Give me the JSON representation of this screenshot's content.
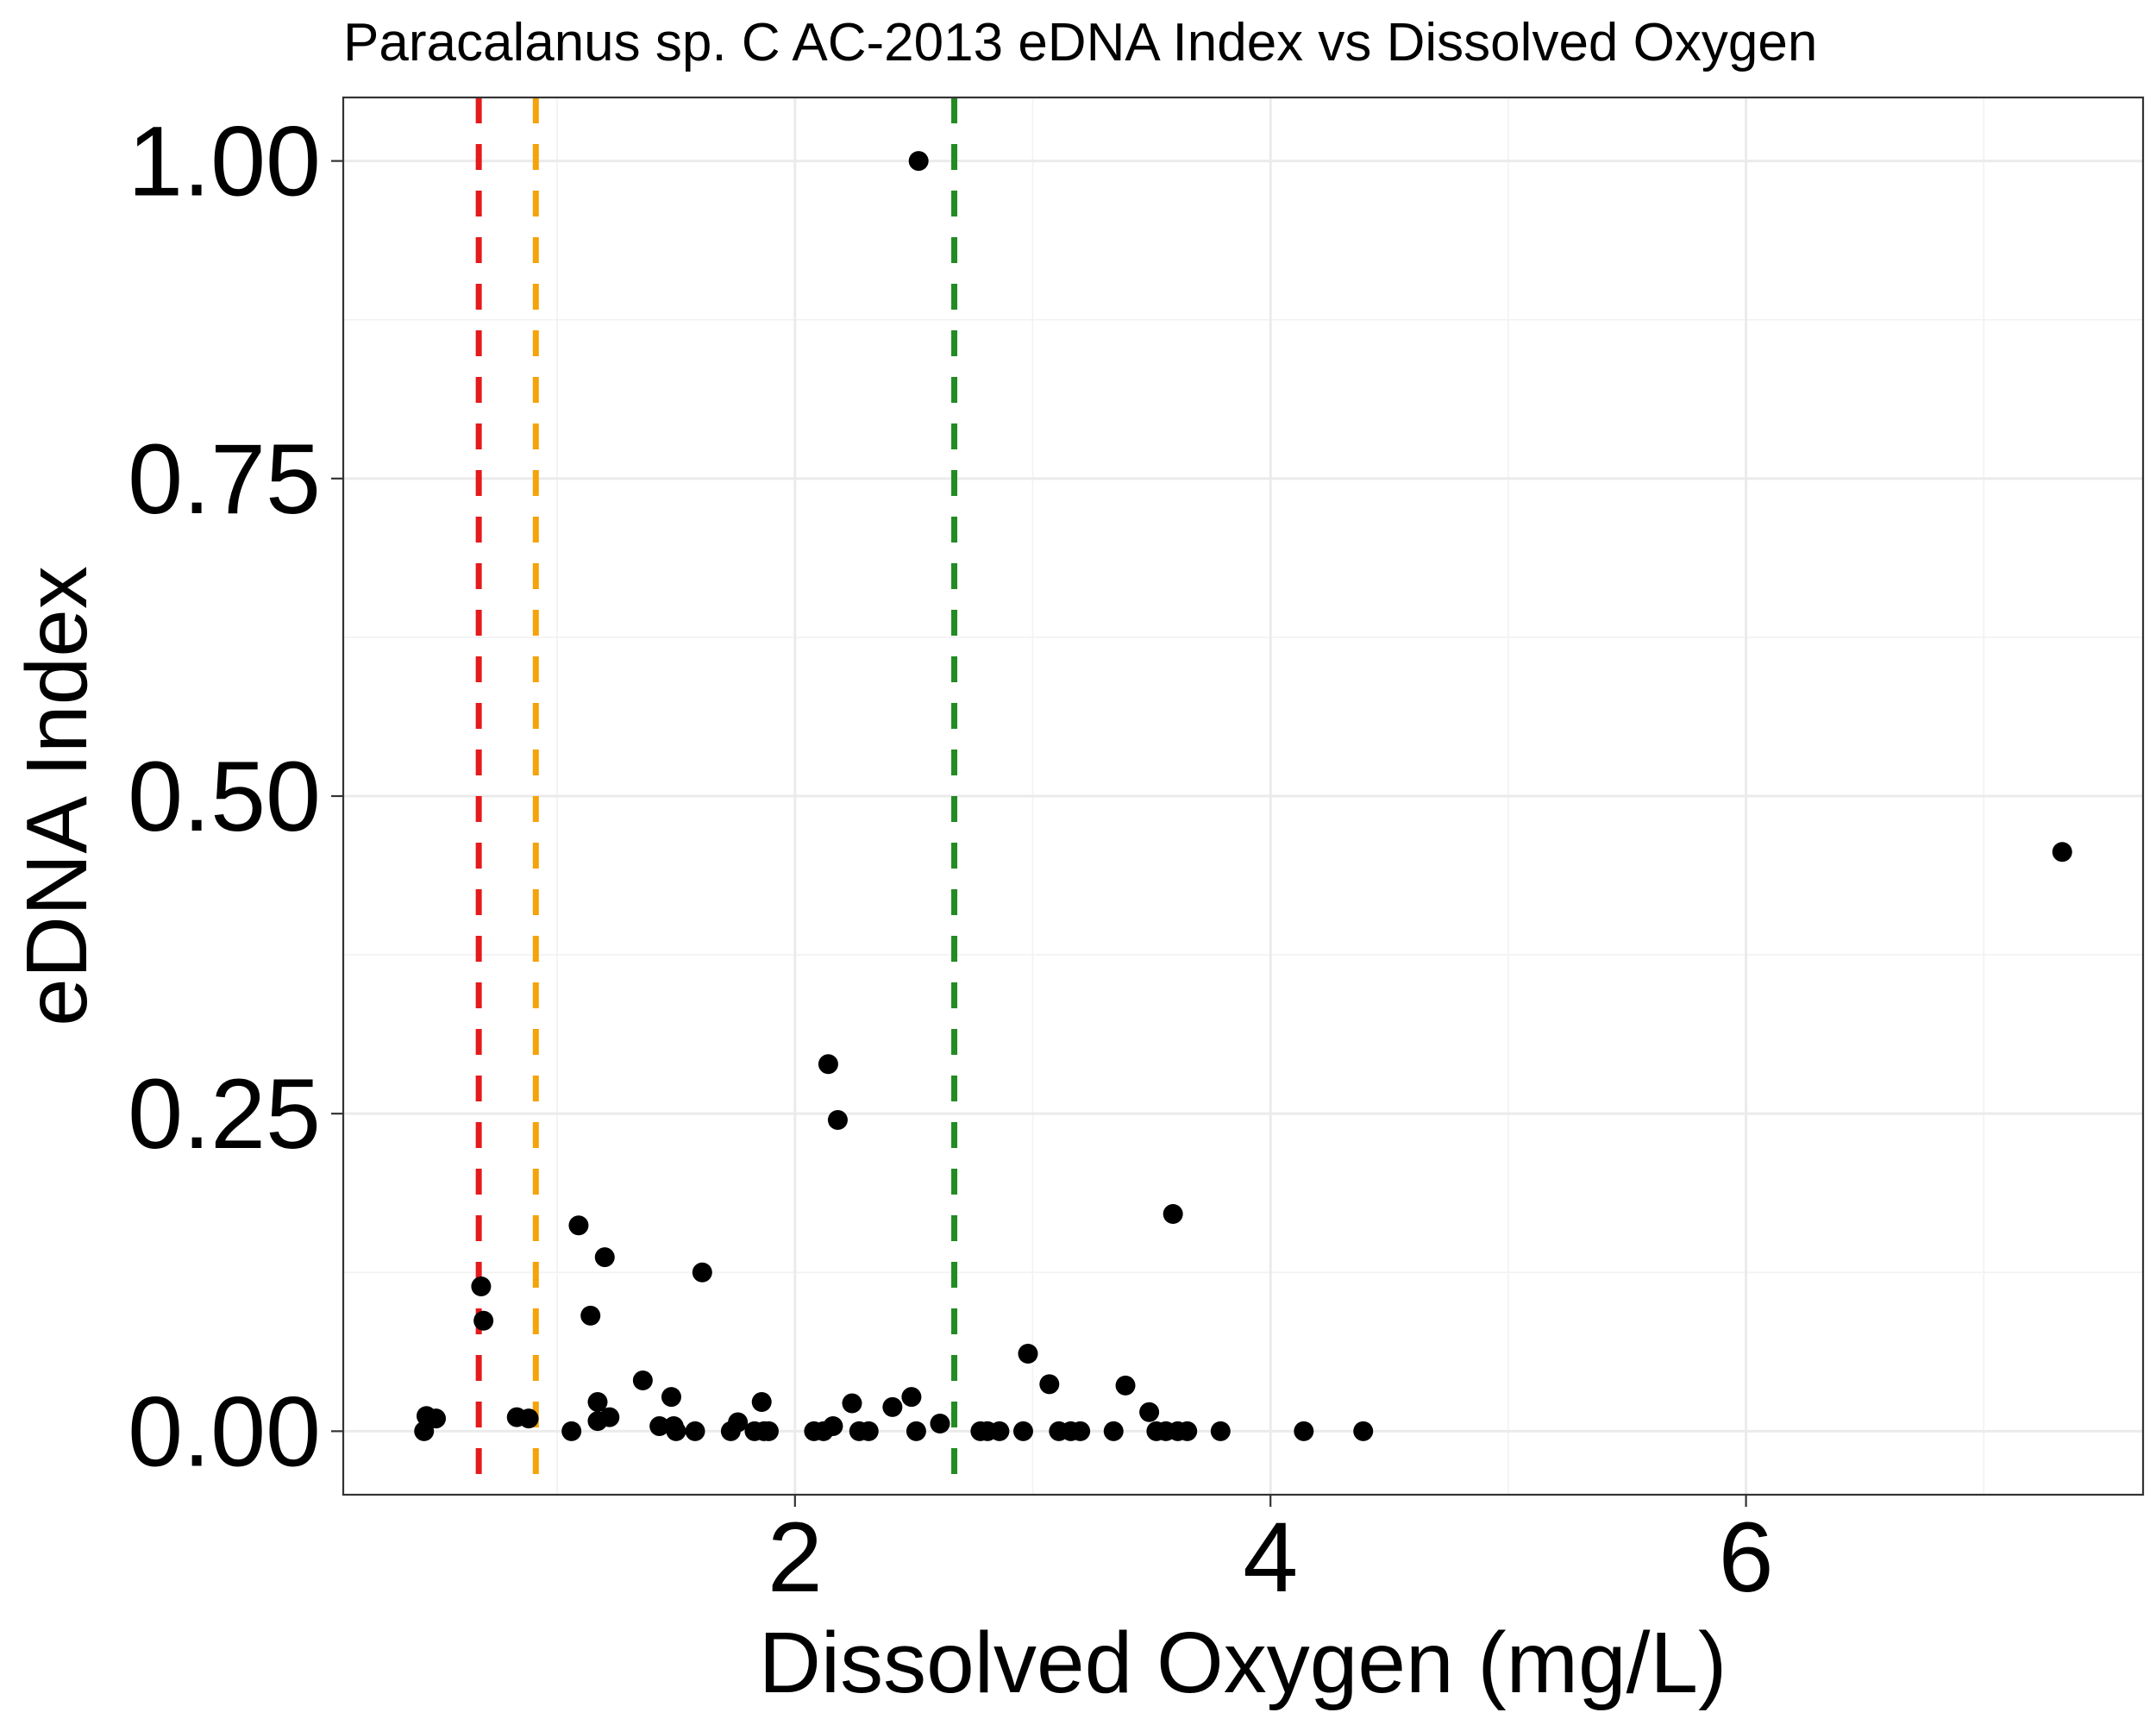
{
  "chart_data": {
    "type": "scatter",
    "title": "Paracalanus sp. C AC-2013 eDNA Index vs Dissolved Oxygen",
    "xlabel": "Dissolved Oxygen (mg/L)",
    "ylabel": "eDNA Index",
    "xlim": [
      0.1,
      7.67
    ],
    "ylim": [
      -0.05,
      1.05
    ],
    "x_ticks": [
      2,
      4,
      6
    ],
    "x_tick_labels": [
      "2",
      "4",
      "6"
    ],
    "y_ticks": [
      0,
      0.25,
      0.5,
      0.75,
      1.0
    ],
    "y_tick_labels": [
      "0.00",
      "0.25",
      "0.50",
      "0.75",
      "1.00"
    ],
    "grid": true,
    "point_color": "#000000",
    "reference_lines": [
      {
        "x": 0.67,
        "color": "#e41a1c",
        "style": "dashed"
      },
      {
        "x": 0.91,
        "color": "#f5a30a",
        "style": "dashed"
      },
      {
        "x": 2.67,
        "color": "#228b22",
        "style": "dashed"
      }
    ],
    "points": [
      {
        "x": 0.44,
        "y": 0.0
      },
      {
        "x": 0.45,
        "y": 0.012
      },
      {
        "x": 0.49,
        "y": 0.01
      },
      {
        "x": 0.68,
        "y": 0.114
      },
      {
        "x": 0.69,
        "y": 0.087
      },
      {
        "x": 0.83,
        "y": 0.011
      },
      {
        "x": 0.88,
        "y": 0.01
      },
      {
        "x": 1.06,
        "y": 0.0
      },
      {
        "x": 1.09,
        "y": 0.162
      },
      {
        "x": 1.14,
        "y": 0.091
      },
      {
        "x": 1.17,
        "y": 0.023
      },
      {
        "x": 1.17,
        "y": 0.008
      },
      {
        "x": 1.2,
        "y": 0.137
      },
      {
        "x": 1.22,
        "y": 0.011
      },
      {
        "x": 1.36,
        "y": 0.04
      },
      {
        "x": 1.43,
        "y": 0.004
      },
      {
        "x": 1.48,
        "y": 0.027
      },
      {
        "x": 1.49,
        "y": 0.004
      },
      {
        "x": 1.5,
        "y": 0.0
      },
      {
        "x": 1.58,
        "y": 0.0
      },
      {
        "x": 1.61,
        "y": 0.125
      },
      {
        "x": 1.73,
        "y": 0.0
      },
      {
        "x": 1.76,
        "y": 0.007
      },
      {
        "x": 1.83,
        "y": 0.0
      },
      {
        "x": 1.86,
        "y": 0.023
      },
      {
        "x": 1.87,
        "y": 0.0
      },
      {
        "x": 1.89,
        "y": 0.0
      },
      {
        "x": 2.08,
        "y": 0.0
      },
      {
        "x": 2.12,
        "y": 0.0
      },
      {
        "x": 2.14,
        "y": 0.289
      },
      {
        "x": 2.16,
        "y": 0.004
      },
      {
        "x": 2.18,
        "y": 0.245
      },
      {
        "x": 2.24,
        "y": 0.022
      },
      {
        "x": 2.27,
        "y": 0.0
      },
      {
        "x": 2.31,
        "y": 0.0
      },
      {
        "x": 2.41,
        "y": 0.019
      },
      {
        "x": 2.49,
        "y": 0.027
      },
      {
        "x": 2.51,
        "y": 0.0
      },
      {
        "x": 2.52,
        "y": 1.0
      },
      {
        "x": 2.61,
        "y": 0.006
      },
      {
        "x": 2.78,
        "y": 0.0
      },
      {
        "x": 2.81,
        "y": 0.0
      },
      {
        "x": 2.86,
        "y": 0.0
      },
      {
        "x": 2.96,
        "y": 0.0
      },
      {
        "x": 2.98,
        "y": 0.061
      },
      {
        "x": 3.07,
        "y": 0.037
      },
      {
        "x": 3.11,
        "y": 0.0
      },
      {
        "x": 3.16,
        "y": 0.0
      },
      {
        "x": 3.2,
        "y": 0.0
      },
      {
        "x": 3.34,
        "y": 0.0
      },
      {
        "x": 3.39,
        "y": 0.036
      },
      {
        "x": 3.49,
        "y": 0.015
      },
      {
        "x": 3.52,
        "y": 0.0
      },
      {
        "x": 3.56,
        "y": 0.0
      },
      {
        "x": 3.59,
        "y": 0.171
      },
      {
        "x": 3.61,
        "y": 0.0
      },
      {
        "x": 3.65,
        "y": 0.0
      },
      {
        "x": 3.79,
        "y": 0.0
      },
      {
        "x": 4.14,
        "y": 0.0
      },
      {
        "x": 4.39,
        "y": 0.0
      },
      {
        "x": 7.33,
        "y": 0.456
      }
    ]
  }
}
